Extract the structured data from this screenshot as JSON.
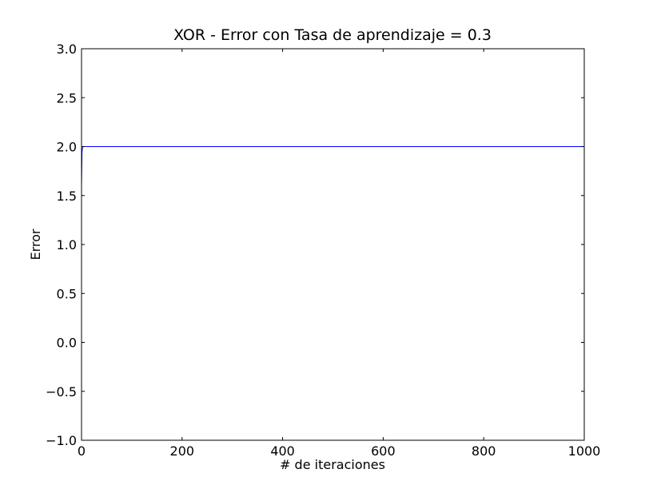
{
  "chart_data": {
    "type": "line",
    "title": "XOR - Error con Tasa de aprendizaje = 0.3",
    "xlabel": "# de iteraciones",
    "ylabel": "Error",
    "xlim": [
      0,
      1000
    ],
    "ylim": [
      -1.0,
      3.0
    ],
    "x_ticks": [
      0,
      200,
      400,
      600,
      800,
      1000
    ],
    "x_tick_labels": [
      "0",
      "200",
      "400",
      "600",
      "800",
      "1000"
    ],
    "y_ticks": [
      -1.0,
      -0.5,
      0.0,
      0.5,
      1.0,
      1.5,
      2.0,
      2.5,
      3.0
    ],
    "y_tick_labels": [
      "−1.0",
      "−0.5",
      "0.0",
      "0.5",
      "1.0",
      "1.5",
      "2.0",
      "2.5",
      "3.0"
    ],
    "grid": false,
    "series": [
      {
        "color": "#0000ff",
        "x": [
          0,
          1,
          2,
          3,
          5,
          10,
          50,
          100,
          200,
          300,
          400,
          500,
          600,
          700,
          800,
          900,
          1000
        ],
        "y": [
          1.6,
          1.95,
          1.99,
          2.0,
          2.0,
          2.0,
          2.0,
          2.0,
          2.0,
          2.0,
          2.0,
          2.0,
          2.0,
          2.0,
          2.0,
          2.0,
          2.0
        ]
      }
    ]
  }
}
